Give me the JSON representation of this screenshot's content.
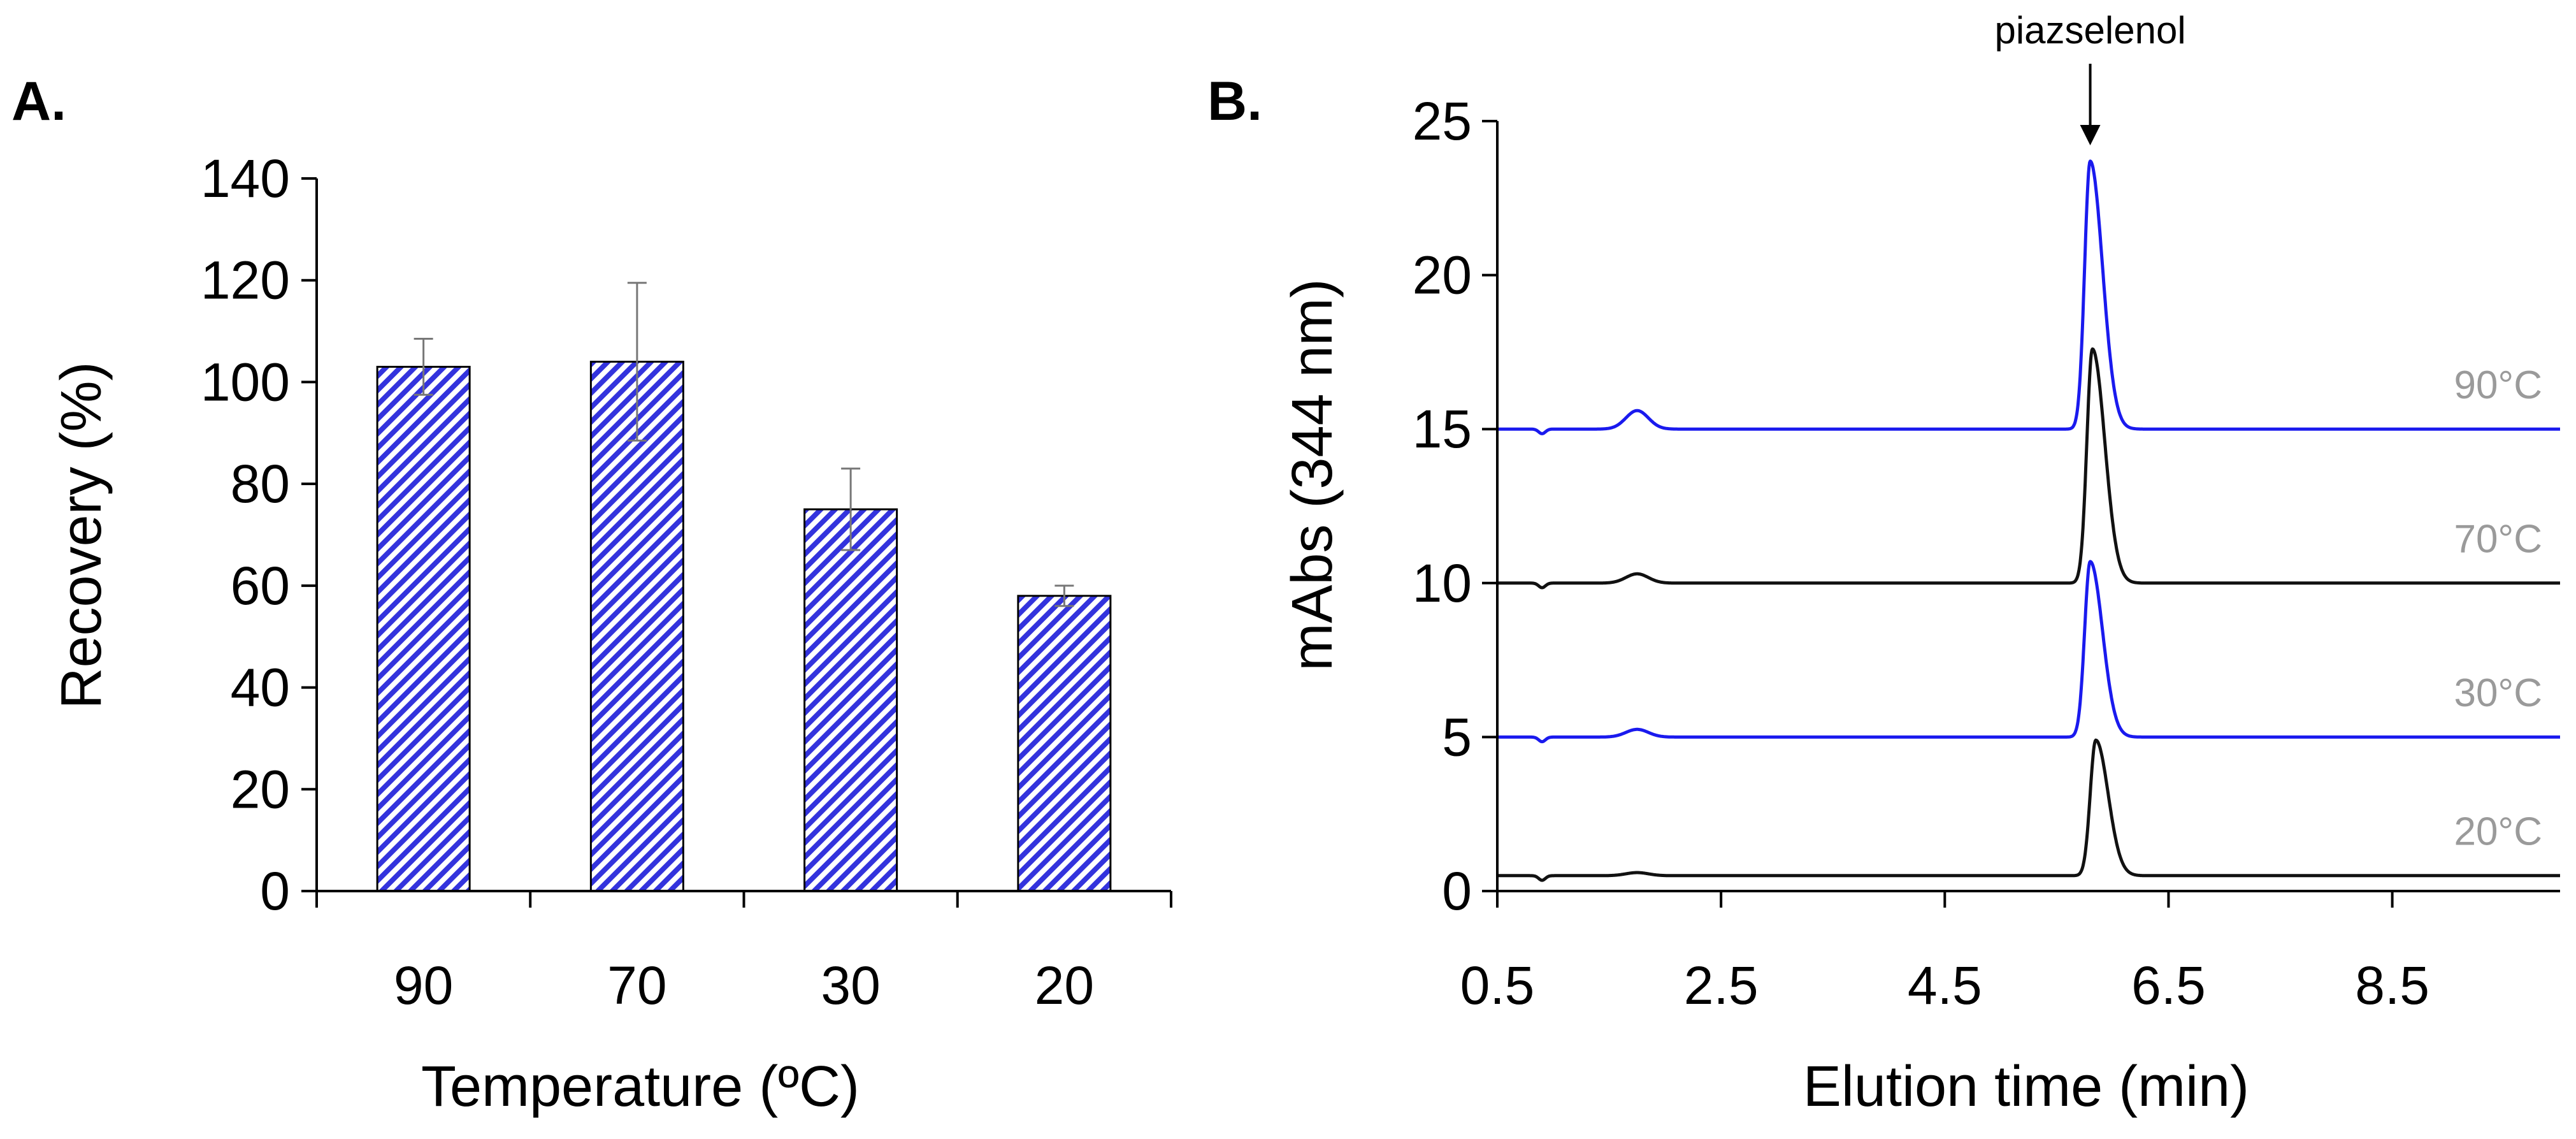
{
  "colors": {
    "bar_fill": "#3333dd",
    "blue_trace": "#1a1aee",
    "black_trace": "#111111",
    "trace_label": "#9a9a9a"
  },
  "chart_data": [
    {
      "panel": "A.",
      "type": "bar",
      "categories": [
        "90",
        "70",
        "30",
        "20"
      ],
      "values": [
        103,
        104,
        75,
        58
      ],
      "errors": [
        5.5,
        15.5,
        8,
        2
      ],
      "xlabel": "Temperature (ºC)",
      "ylabel": "Recovery (%)",
      "ylim": [
        0,
        140
      ],
      "yticks": [
        "0",
        "20",
        "40",
        "60",
        "80",
        "100",
        "120",
        "140"
      ],
      "pattern": "diagonal-hatch"
    },
    {
      "panel": "B.",
      "type": "line",
      "xlabel": "Elution time (min)",
      "ylabel": "mAbs (344 nm)",
      "xlim": [
        0.5,
        10.0
      ],
      "ylim": [
        0,
        25
      ],
      "xticks": [
        "0.5",
        "2.5",
        "4.5",
        "6.5",
        "8.5"
      ],
      "yticks": [
        "0",
        "5",
        "10",
        "15",
        "20",
        "25"
      ],
      "annotation": "piazselenol",
      "annotation_x": 5.8,
      "series": [
        {
          "name": "90°C",
          "color": "blue",
          "baseline": 15.0,
          "peak_time": 5.8,
          "peak_height": 8.7,
          "minor_peak_time": 1.75,
          "minor_peak_height": 0.6
        },
        {
          "name": "70°C",
          "color": "black",
          "baseline": 10.0,
          "peak_time": 5.82,
          "peak_height": 7.6,
          "minor_peak_time": 1.75,
          "minor_peak_height": 0.3
        },
        {
          "name": "30°C",
          "color": "blue",
          "baseline": 5.0,
          "peak_time": 5.8,
          "peak_height": 5.7,
          "minor_peak_time": 1.75,
          "minor_peak_height": 0.25
        },
        {
          "name": "20°C",
          "color": "black",
          "baseline": 0.5,
          "peak_time": 5.85,
          "peak_height": 4.4,
          "minor_peak_time": 1.75,
          "minor_peak_height": 0.1
        }
      ]
    }
  ]
}
